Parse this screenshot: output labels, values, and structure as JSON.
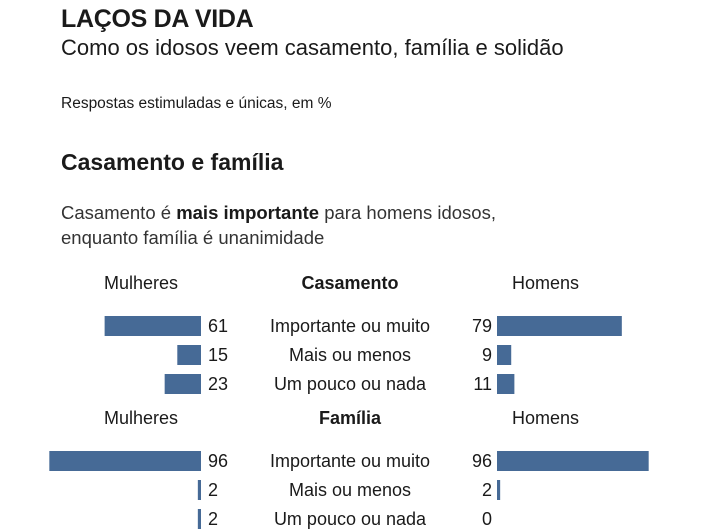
{
  "header": {
    "title": "LAÇOS DA VIDA",
    "subtitle": "Como os idosos veem casamento, família e solidão",
    "note": "Respostas estimuladas e únicas, em %"
  },
  "section": {
    "title": "Casamento e família",
    "lead_before": "Casamento é ",
    "lead_bold": "mais importante",
    "lead_after": " para homens idosos,",
    "lead_line2": "enquanto família é unanimidade"
  },
  "colors": {
    "bar": "#466a96"
  },
  "chart_data": [
    {
      "type": "bar",
      "title": "Casamento",
      "categories": [
        "Importante ou muito",
        "Mais ou menos",
        "Um pouco ou nada"
      ],
      "series": [
        {
          "name": "Mulheres",
          "values": [
            61,
            15,
            23
          ]
        },
        {
          "name": "Homens",
          "values": [
            79,
            9,
            11
          ]
        }
      ],
      "xlim": [
        0,
        100
      ]
    },
    {
      "type": "bar",
      "title": "Família",
      "categories": [
        "Importante ou muito",
        "Mais ou menos",
        "Um pouco ou nada"
      ],
      "series": [
        {
          "name": "Mulheres",
          "values": [
            96,
            2,
            2
          ]
        },
        {
          "name": "Homens",
          "values": [
            96,
            2,
            0
          ]
        }
      ],
      "xlim": [
        0,
        100
      ]
    }
  ]
}
